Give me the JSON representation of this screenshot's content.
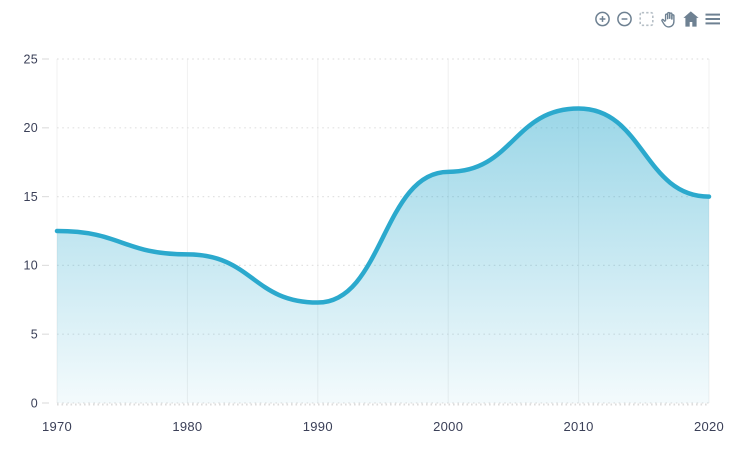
{
  "toolbar": {
    "icon_color": "#6E8192",
    "selection_icon_color": "#B6BFC6",
    "icons": [
      {
        "name": "zoom-in",
        "interactable": true
      },
      {
        "name": "zoom-out",
        "interactable": true
      },
      {
        "name": "selection",
        "interactable": true
      },
      {
        "name": "pan",
        "interactable": true
      },
      {
        "name": "home",
        "interactable": true
      },
      {
        "name": "menu",
        "interactable": true
      }
    ]
  },
  "chart_data": {
    "type": "area",
    "title": "",
    "xlabel": "",
    "ylabel": "",
    "x": [
      1970,
      1980,
      1990,
      2000,
      2010,
      2020
    ],
    "values": [
      12.5,
      10.8,
      7.3,
      16.8,
      21.4,
      15.0
    ],
    "xlim": [
      1970,
      2020
    ],
    "ylim": [
      0,
      25
    ],
    "x_ticks": [
      1970,
      1980,
      1990,
      2000,
      2010,
      2020
    ],
    "y_ticks": [
      0,
      5,
      10,
      15,
      20,
      25
    ],
    "grid": true,
    "legend": false,
    "curve": "smooth",
    "stroke_color": "#2BA9CD",
    "fill_opacity_top": 0.47,
    "fill_opacity_bottom": 0.055,
    "gridline_color_h": "#E2E2E2",
    "gridline_color_v": "#F0F0F0",
    "axis_tick_color": "#E0E0E0",
    "label_color": "#3B4058"
  }
}
